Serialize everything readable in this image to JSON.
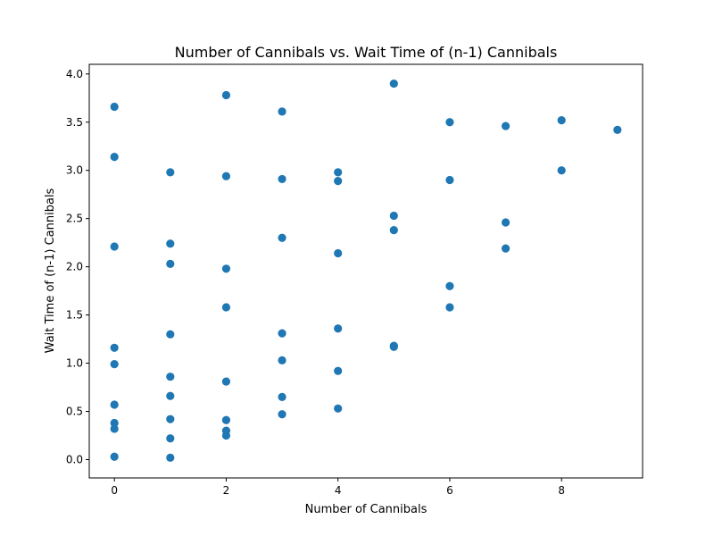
{
  "chart_data": {
    "type": "scatter",
    "title": "Number of Cannibals vs. Wait Time of (n-1) Cannibals",
    "xlabel": "Number of Cannibals",
    "ylabel": "Wait Time of (n-1) Cannibals",
    "xlim": [
      -0.45,
      9.45
    ],
    "ylim": [
      -0.19,
      4.1
    ],
    "xticks": [
      0,
      2,
      4,
      6,
      8
    ],
    "yticks": [
      0.0,
      0.5,
      1.0,
      1.5,
      2.0,
      2.5,
      3.0,
      3.5,
      4.0
    ],
    "xtick_labels": [
      "0",
      "2",
      "4",
      "6",
      "8"
    ],
    "ytick_labels": [
      "0.0",
      "0.5",
      "1.0",
      "1.5",
      "2.0",
      "2.5",
      "3.0",
      "3.5",
      "4.0"
    ],
    "grid": false,
    "marker_color": "#1f77b4",
    "points": [
      {
        "x": 0,
        "y": 3.66
      },
      {
        "x": 0,
        "y": 3.14
      },
      {
        "x": 0,
        "y": 2.21
      },
      {
        "x": 0,
        "y": 1.16
      },
      {
        "x": 0,
        "y": 0.99
      },
      {
        "x": 0,
        "y": 0.57
      },
      {
        "x": 0,
        "y": 0.38
      },
      {
        "x": 0,
        "y": 0.32
      },
      {
        "x": 0,
        "y": 0.03
      },
      {
        "x": 1,
        "y": 2.98
      },
      {
        "x": 1,
        "y": 2.24
      },
      {
        "x": 1,
        "y": 2.03
      },
      {
        "x": 1,
        "y": 1.3
      },
      {
        "x": 1,
        "y": 0.86
      },
      {
        "x": 1,
        "y": 0.66
      },
      {
        "x": 1,
        "y": 0.42
      },
      {
        "x": 1,
        "y": 0.22
      },
      {
        "x": 1,
        "y": 0.02
      },
      {
        "x": 2,
        "y": 3.78
      },
      {
        "x": 2,
        "y": 2.94
      },
      {
        "x": 2,
        "y": 1.98
      },
      {
        "x": 2,
        "y": 1.58
      },
      {
        "x": 2,
        "y": 0.81
      },
      {
        "x": 2,
        "y": 0.41
      },
      {
        "x": 2,
        "y": 0.3
      },
      {
        "x": 2,
        "y": 0.25
      },
      {
        "x": 3,
        "y": 3.61
      },
      {
        "x": 3,
        "y": 2.91
      },
      {
        "x": 3,
        "y": 2.3
      },
      {
        "x": 3,
        "y": 1.31
      },
      {
        "x": 3,
        "y": 1.03
      },
      {
        "x": 3,
        "y": 0.65
      },
      {
        "x": 3,
        "y": 0.47
      },
      {
        "x": 4,
        "y": 2.98
      },
      {
        "x": 4,
        "y": 2.89
      },
      {
        "x": 4,
        "y": 2.14
      },
      {
        "x": 4,
        "y": 1.36
      },
      {
        "x": 4,
        "y": 0.92
      },
      {
        "x": 4,
        "y": 0.53
      },
      {
        "x": 5,
        "y": 3.9
      },
      {
        "x": 5,
        "y": 2.53
      },
      {
        "x": 5,
        "y": 2.38
      },
      {
        "x": 5,
        "y": 1.18
      },
      {
        "x": 5,
        "y": 1.17
      },
      {
        "x": 6,
        "y": 3.5
      },
      {
        "x": 6,
        "y": 2.9
      },
      {
        "x": 6,
        "y": 1.8
      },
      {
        "x": 6,
        "y": 1.58
      },
      {
        "x": 7,
        "y": 3.46
      },
      {
        "x": 7,
        "y": 2.46
      },
      {
        "x": 7,
        "y": 2.19
      },
      {
        "x": 8,
        "y": 3.52
      },
      {
        "x": 8,
        "y": 3.0
      },
      {
        "x": 9,
        "y": 3.42
      }
    ]
  }
}
